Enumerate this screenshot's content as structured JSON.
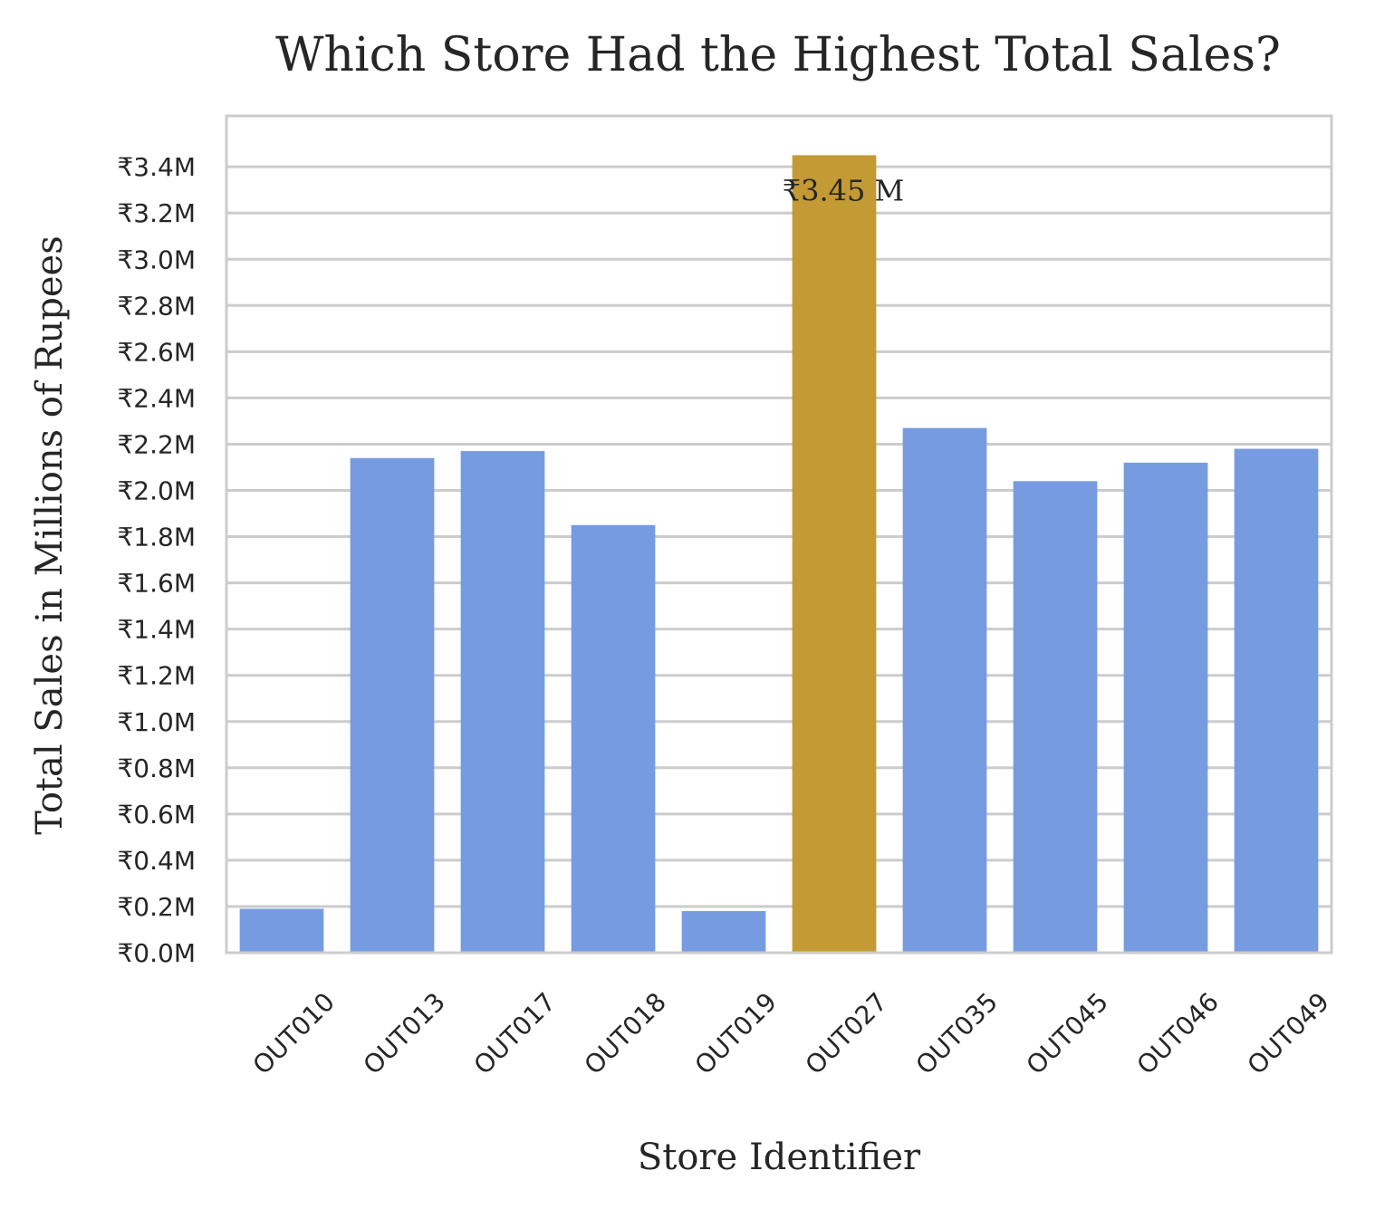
{
  "chart_data": {
    "type": "bar",
    "title": "Which Store Had the Highest Total Sales?",
    "xlabel": "Store Identifier",
    "ylabel": "Total Sales in Millions of Rupees",
    "categories": [
      "OUT010",
      "OUT013",
      "OUT017",
      "OUT018",
      "OUT019",
      "OUT027",
      "OUT035",
      "OUT045",
      "OUT046",
      "OUT049"
    ],
    "values": [
      0.19,
      2.14,
      2.17,
      1.85,
      0.18,
      3.45,
      2.27,
      2.04,
      2.12,
      2.18
    ],
    "ylim": [
      0,
      3.62
    ],
    "yticks": [
      0,
      0.2,
      0.4,
      0.6,
      0.8,
      1.0,
      1.2,
      1.4,
      1.6,
      1.8,
      2.0,
      2.2,
      2.4,
      2.6,
      2.8,
      3.0,
      3.2,
      3.4
    ],
    "ytick_labels": [
      "₹0.0M",
      "₹0.2M",
      "₹0.4M",
      "₹0.6M",
      "₹0.8M",
      "₹1.0M",
      "₹1.2M",
      "₹1.4M",
      "₹1.6M",
      "₹1.8M",
      "₹2.0M",
      "₹2.2M",
      "₹2.4M",
      "₹2.6M",
      "₹2.8M",
      "₹3.0M",
      "₹3.2M",
      "₹3.4M"
    ],
    "highlight_index": 5,
    "annotation": "₹3.45 M",
    "colors": {
      "bar": "#779be0",
      "highlight": "#c49a35",
      "grid": "#cccccc",
      "frame": "#cccccc"
    },
    "grid": true
  }
}
